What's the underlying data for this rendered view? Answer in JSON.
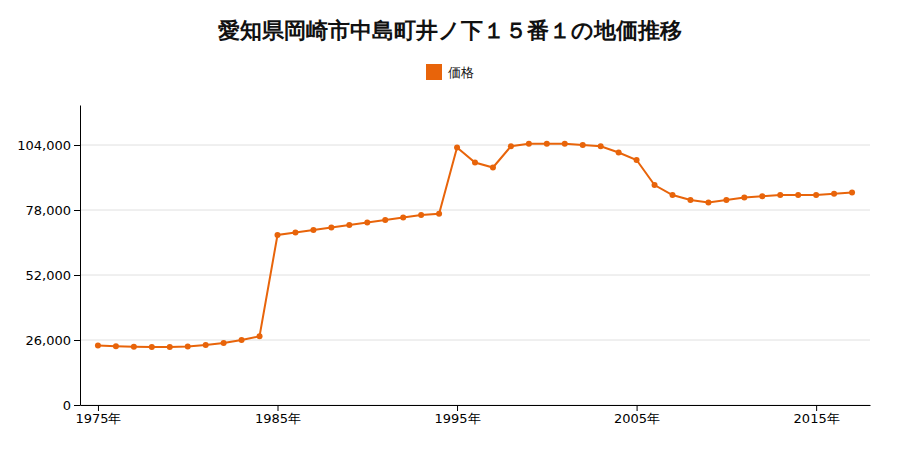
{
  "chart_data": {
    "type": "line",
    "title": "愛知県岡崎市中島町井ノ下１５番１の地価推移",
    "x": [
      1975,
      1976,
      1977,
      1978,
      1979,
      1980,
      1981,
      1982,
      1983,
      1984,
      1985,
      1986,
      1987,
      1988,
      1989,
      1990,
      1991,
      1992,
      1993,
      1994,
      1995,
      1996,
      1997,
      1998,
      1999,
      2000,
      2001,
      2002,
      2003,
      2004,
      2005,
      2006,
      2007,
      2008,
      2009,
      2010,
      2011,
      2012,
      2013,
      2014,
      2015,
      2016,
      2017
    ],
    "series": [
      {
        "name": "価格",
        "color": "#e8640a",
        "marker": "circle",
        "values": [
          23800,
          23500,
          23300,
          23200,
          23200,
          23400,
          24000,
          24800,
          26000,
          27500,
          68000,
          69000,
          70000,
          71000,
          72000,
          73000,
          74000,
          75000,
          76000,
          76500,
          103000,
          97000,
          95000,
          103500,
          104500,
          104500,
          104500,
          104000,
          103500,
          101000,
          98000,
          88000,
          84000,
          82000,
          81000,
          82000,
          83000,
          83500,
          84000,
          84000,
          84000,
          84500,
          85000
        ]
      }
    ],
    "xlim": [
      1974,
      2018
    ],
    "xticks": [
      {
        "value": 1975,
        "label": "1975年"
      },
      {
        "value": 1985,
        "label": "1985年"
      },
      {
        "value": 1995,
        "label": "1995年"
      },
      {
        "value": 2005,
        "label": "2005年"
      },
      {
        "value": 2015,
        "label": "2015年"
      }
    ],
    "ylim": [
      0,
      120000
    ],
    "yticks": [
      0,
      {
        "value": 26000,
        "label": "26,000"
      },
      {
        "value": 52000,
        "label": "52,000"
      },
      {
        "value": 78000,
        "label": "78,000"
      },
      {
        "value": 104000,
        "label": "104,000"
      }
    ],
    "grid": true,
    "legend": "top"
  }
}
